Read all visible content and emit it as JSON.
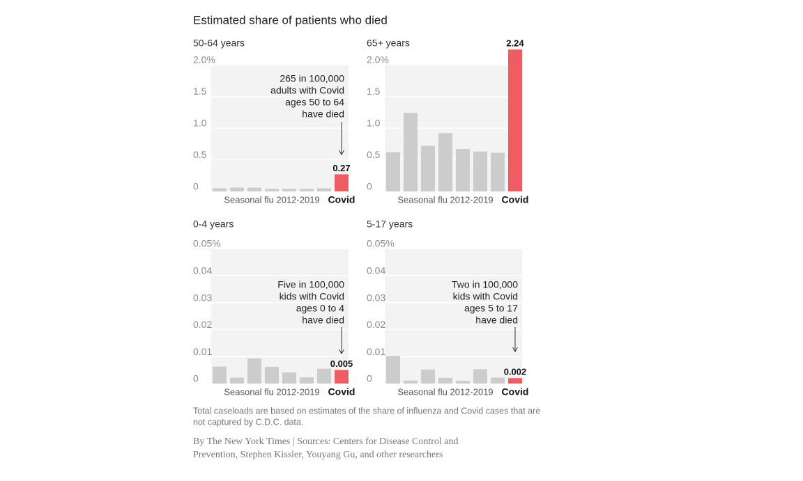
{
  "title": "Estimated share of patients who died",
  "chart_data": [
    {
      "type": "bar",
      "title": "50-64 years",
      "group_label": "Seasonal flu 2012-2019",
      "categories": [
        null,
        null,
        null,
        null,
        null,
        null,
        null,
        "Covid"
      ],
      "values": [
        0.05,
        0.06,
        0.06,
        0.04,
        0.04,
        0.04,
        0.05,
        0.27
      ],
      "value_labels": [
        null,
        null,
        null,
        null,
        null,
        null,
        null,
        "0.27"
      ],
      "color": "#cccccc",
      "highlight_color": "#ef5c64",
      "ylim": [
        0,
        2
      ],
      "yticks": [
        0,
        0.5,
        {
          "value": 1,
          "label": "1.0"
        },
        1.5,
        {
          "value": 2,
          "label": "2.0%"
        }
      ],
      "grid": true,
      "annotation": [
        "265 in 100,000",
        "adults with Covid",
        "ages 50 to 64",
        "have died"
      ]
    },
    {
      "type": "bar",
      "title": "65+ years",
      "group_label": "Seasonal flu 2012-2019",
      "categories": [
        null,
        null,
        null,
        null,
        null,
        null,
        null,
        "Covid"
      ],
      "values": [
        0.62,
        1.24,
        0.72,
        0.92,
        0.67,
        0.63,
        0.61,
        2.24
      ],
      "value_labels": [
        null,
        null,
        null,
        null,
        null,
        null,
        null,
        "2.24"
      ],
      "color": "#cccccc",
      "highlight_color": "#ef5c64",
      "ylim": [
        0,
        2
      ],
      "yticks": [
        0,
        0.5,
        {
          "value": 1,
          "label": "1.0"
        },
        1.5,
        {
          "value": 2,
          "label": "2.0%"
        }
      ],
      "grid": true
    },
    {
      "type": "bar",
      "title": "0-4 years",
      "group_label": "Seasonal flu 2012-2019",
      "categories": [
        null,
        null,
        null,
        null,
        null,
        null,
        null,
        "Covid"
      ],
      "values": [
        0.0063,
        0.0022,
        0.0093,
        0.0062,
        0.0041,
        0.0023,
        0.0055,
        0.005
      ],
      "value_labels": [
        null,
        null,
        null,
        null,
        null,
        null,
        null,
        "0.005"
      ],
      "color": "#cccccc",
      "highlight_color": "#ef5c64",
      "ylim": [
        0,
        0.05
      ],
      "yticks": [
        0,
        0.01,
        0.02,
        0.03,
        0.04,
        {
          "value": 0.05,
          "label": "0.05%"
        }
      ],
      "grid": true,
      "annotation": [
        "Five in 100,000",
        "kids with Covid",
        "ages 0 to 4",
        "have died"
      ]
    },
    {
      "type": "bar",
      "title": "5-17 years",
      "group_label": "Seasonal flu 2012-2019",
      "categories": [
        null,
        null,
        null,
        null,
        null,
        null,
        null,
        "Covid"
      ],
      "values": [
        0.0102,
        0.0011,
        0.0052,
        0.0021,
        0.001,
        0.0053,
        0.0022,
        0.002
      ],
      "value_labels": [
        null,
        null,
        null,
        null,
        null,
        null,
        null,
        "0.002"
      ],
      "color": "#cccccc",
      "highlight_color": "#ef5c64",
      "ylim": [
        0,
        0.05
      ],
      "yticks": [
        0,
        0.01,
        0.02,
        0.03,
        0.04,
        {
          "value": 0.05,
          "label": "0.05%"
        }
      ],
      "grid": true,
      "annotation": [
        "Two in 100,000",
        "kids with Covid",
        "ages 5 to 17",
        "have died"
      ]
    }
  ],
  "note": [
    "Total caseloads are based on estimates of the share of influenza and Covid cases that are",
    "not captured by C.D.C. data."
  ],
  "credit": [
    "By The New York Times | Sources: Centers for Disease Control and",
    "Prevention, Stephen Kissler, Youyang Gu, and other researchers"
  ]
}
